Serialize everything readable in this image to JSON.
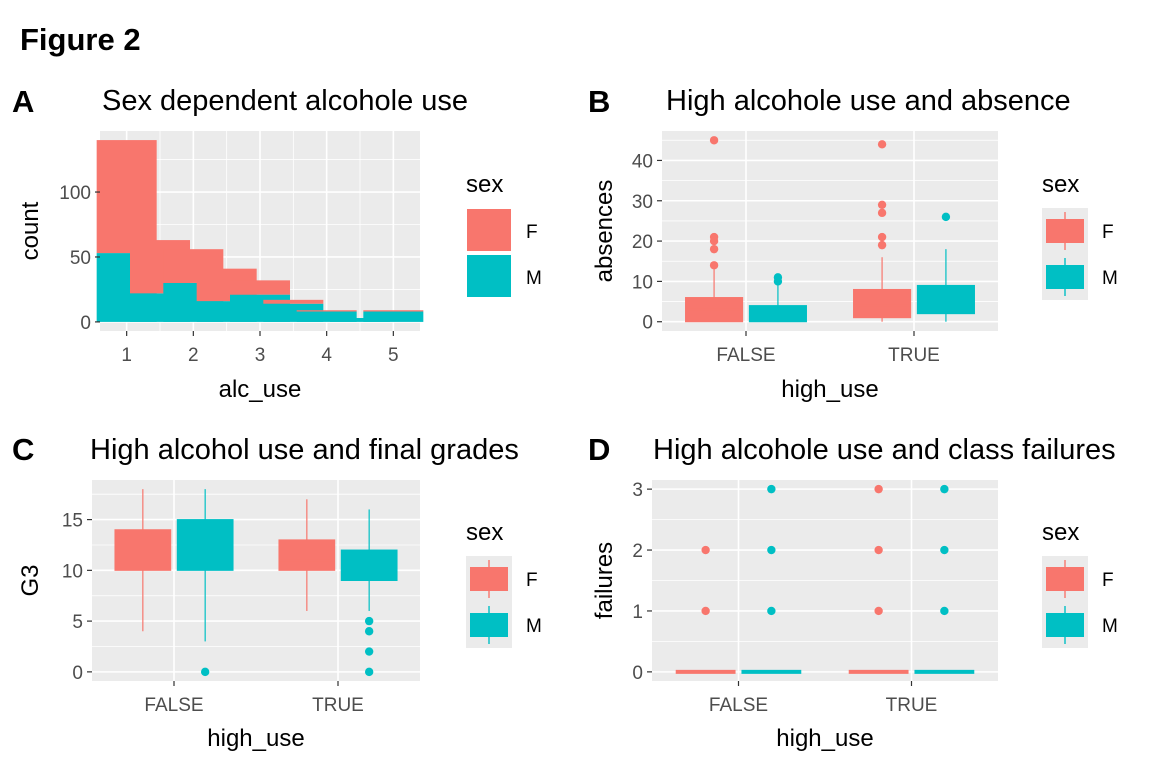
{
  "figure": {
    "title": "Figure 2"
  },
  "colors": {
    "F": "#F8766D",
    "M": "#00BFC4",
    "panel_bg": "#EBEBEB",
    "grid": "#FFFFFF"
  },
  "chart_data": [
    {
      "tag": "A",
      "type": "bar",
      "stacked": true,
      "title": "Sex dependent alcohole use",
      "xlabel": "alc_use",
      "ylabel": "count",
      "x": [
        1,
        1.5,
        2,
        2.5,
        3,
        3.5,
        4,
        4.5,
        5
      ],
      "xlim": [
        0.6,
        5.4
      ],
      "ylim": [
        -7,
        147
      ],
      "xticks": [
        1,
        2,
        3,
        4,
        5
      ],
      "yticks": [
        0,
        50,
        100
      ],
      "series": [
        {
          "name": "F",
          "values": [
            87,
            41,
            26,
            25,
            11,
            3,
            1,
            0,
            1
          ]
        },
        {
          "name": "M",
          "values": [
            53,
            22,
            30,
            16,
            21,
            14,
            8,
            3,
            8
          ]
        }
      ],
      "legend": {
        "title": "sex",
        "labels": [
          "F",
          "M"
        ],
        "placement": "right"
      }
    },
    {
      "tag": "B",
      "type": "box",
      "title": "High alcohole use and absence",
      "xlabel": "high_use",
      "ylabel": "absences",
      "categories": [
        "FALSE",
        "TRUE"
      ],
      "ylim": [
        -2.3,
        47.3
      ],
      "yticks": [
        0,
        10,
        20,
        30,
        40
      ],
      "groups": [
        {
          "category": "FALSE",
          "sex": "F",
          "min": 0,
          "q1": 0,
          "median": 3,
          "q3": 6,
          "max": 13,
          "outliers": [
            14,
            18,
            20,
            21,
            45
          ]
        },
        {
          "category": "FALSE",
          "sex": "M",
          "min": 0,
          "q1": 0,
          "median": 2,
          "q3": 4,
          "max": 9,
          "outliers": [
            10,
            11
          ]
        },
        {
          "category": "TRUE",
          "sex": "F",
          "min": 0,
          "q1": 1,
          "median": 4,
          "q3": 8,
          "max": 16,
          "outliers": [
            19,
            21,
            27,
            29,
            44
          ]
        },
        {
          "category": "TRUE",
          "sex": "M",
          "min": 0,
          "q1": 2,
          "median": 4,
          "q3": 9,
          "max": 18,
          "outliers": [
            26
          ]
        }
      ],
      "legend": {
        "title": "sex",
        "labels": [
          "F",
          "M"
        ],
        "placement": "right"
      }
    },
    {
      "tag": "C",
      "type": "box",
      "title": "High alcohol use and final grades",
      "xlabel": "high_use",
      "ylabel": "G3",
      "categories": [
        "FALSE",
        "TRUE"
      ],
      "ylim": [
        -0.9,
        18.9
      ],
      "yticks": [
        0,
        5,
        10,
        15
      ],
      "groups": [
        {
          "category": "FALSE",
          "sex": "F",
          "min": 4,
          "q1": 10,
          "median": 12,
          "q3": 14,
          "max": 18,
          "outliers": []
        },
        {
          "category": "FALSE",
          "sex": "M",
          "min": 3,
          "q1": 10,
          "median": 12,
          "q3": 15,
          "max": 18,
          "outliers": [
            0
          ]
        },
        {
          "category": "TRUE",
          "sex": "F",
          "min": 6,
          "q1": 10,
          "median": 11,
          "q3": 13,
          "max": 17,
          "outliers": []
        },
        {
          "category": "TRUE",
          "sex": "M",
          "min": 6,
          "q1": 9,
          "median": 11,
          "q3": 12,
          "max": 16,
          "outliers": [
            0,
            2,
            4,
            5
          ]
        }
      ],
      "legend": {
        "title": "sex",
        "labels": [
          "F",
          "M"
        ],
        "placement": "right"
      }
    },
    {
      "tag": "D",
      "type": "box",
      "title": "High alcohole use and class failures",
      "xlabel": "high_use",
      "ylabel": "failures",
      "categories": [
        "FALSE",
        "TRUE"
      ],
      "ylim": [
        -0.15,
        3.15
      ],
      "yticks": [
        0,
        1,
        2,
        3
      ],
      "groups": [
        {
          "category": "FALSE",
          "sex": "F",
          "min": 0,
          "q1": 0,
          "median": 0,
          "q3": 0,
          "max": 0,
          "outliers": [
            1,
            2
          ]
        },
        {
          "category": "FALSE",
          "sex": "M",
          "min": 0,
          "q1": 0,
          "median": 0,
          "q3": 0,
          "max": 0,
          "outliers": [
            1,
            2,
            3
          ]
        },
        {
          "category": "TRUE",
          "sex": "F",
          "min": 0,
          "q1": 0,
          "median": 0,
          "q3": 0,
          "max": 0,
          "outliers": [
            1,
            2,
            3
          ]
        },
        {
          "category": "TRUE",
          "sex": "M",
          "min": 0,
          "q1": 0,
          "median": 0,
          "q3": 0,
          "max": 0,
          "outliers": [
            1,
            2,
            3
          ]
        }
      ],
      "legend": {
        "title": "sex",
        "labels": [
          "F",
          "M"
        ],
        "placement": "right"
      }
    }
  ]
}
